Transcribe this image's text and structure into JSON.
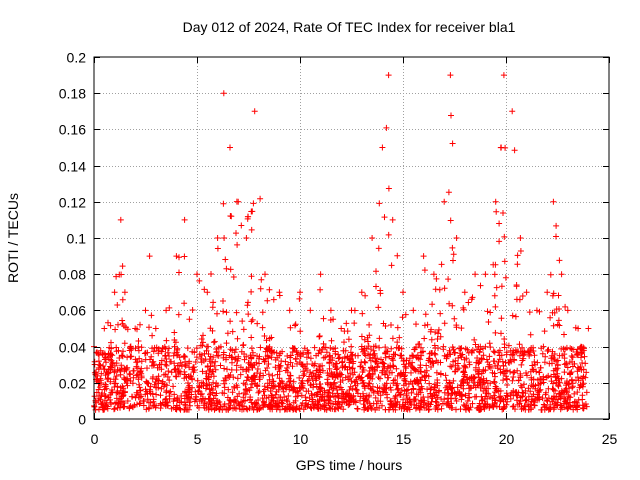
{
  "chart_data": {
    "type": "scatter",
    "title": "Day 012 of 2024, Rate Of TEC Index for receiver bla1",
    "xlabel": "GPS time / hours",
    "ylabel": "ROTI / TECUs",
    "xlim": [
      0,
      25
    ],
    "ylim": [
      0,
      0.2
    ],
    "x_ticks": [
      0,
      5,
      10,
      15,
      20,
      25
    ],
    "x_tick_labels": [
      "0",
      "5",
      "10",
      "15",
      "20",
      "25"
    ],
    "y_ticks": [
      0,
      0.02,
      0.04,
      0.06,
      0.08,
      0.1,
      0.12,
      0.14,
      0.16,
      0.18,
      0.2
    ],
    "y_tick_labels": [
      "0",
      "0.02",
      "0.04",
      "0.06",
      "0.08",
      "0.1",
      "0.12",
      "0.14",
      "0.16",
      "0.18",
      "0.2"
    ],
    "grid": true,
    "marker": "+",
    "series": [
      {
        "name": "ROTI",
        "color": "#ff0000",
        "envelope_x": [
          0,
          0.5,
          1.0,
          1.3,
          1.5,
          2.0,
          2.5,
          2.7,
          3.0,
          3.5,
          4.0,
          4.4,
          5.0,
          5.5,
          6.0,
          6.3,
          6.6,
          7.0,
          7.4,
          7.8,
          8.3,
          9.0,
          9.5,
          10.0,
          10.5,
          11.0,
          11.5,
          12.0,
          12.5,
          13.0,
          13.5,
          14.0,
          14.3,
          14.5,
          15.0,
          15.5,
          16.0,
          16.5,
          17.0,
          17.3,
          17.6,
          18.0,
          18.5,
          19.0,
          19.5,
          19.9,
          20.3,
          20.7,
          21.0,
          21.5,
          22.0,
          22.3,
          22.7,
          23.0,
          23.5,
          24.0
        ],
        "envelope_y": [
          0.04,
          0.05,
          0.07,
          0.11,
          0.07,
          0.05,
          0.06,
          0.09,
          0.05,
          0.06,
          0.09,
          0.11,
          0.08,
          0.07,
          0.1,
          0.18,
          0.15,
          0.12,
          0.1,
          0.17,
          0.08,
          0.07,
          0.06,
          0.07,
          0.06,
          0.08,
          0.06,
          0.05,
          0.06,
          0.07,
          0.1,
          0.15,
          0.19,
          0.11,
          0.07,
          0.06,
          0.09,
          0.08,
          0.12,
          0.19,
          0.1,
          0.07,
          0.08,
          0.08,
          0.12,
          0.19,
          0.17,
          0.1,
          0.07,
          0.06,
          0.07,
          0.12,
          0.08,
          0.06,
          0.05,
          0.05
        ],
        "baseline_range": [
          0.005,
          0.04
        ]
      }
    ]
  }
}
